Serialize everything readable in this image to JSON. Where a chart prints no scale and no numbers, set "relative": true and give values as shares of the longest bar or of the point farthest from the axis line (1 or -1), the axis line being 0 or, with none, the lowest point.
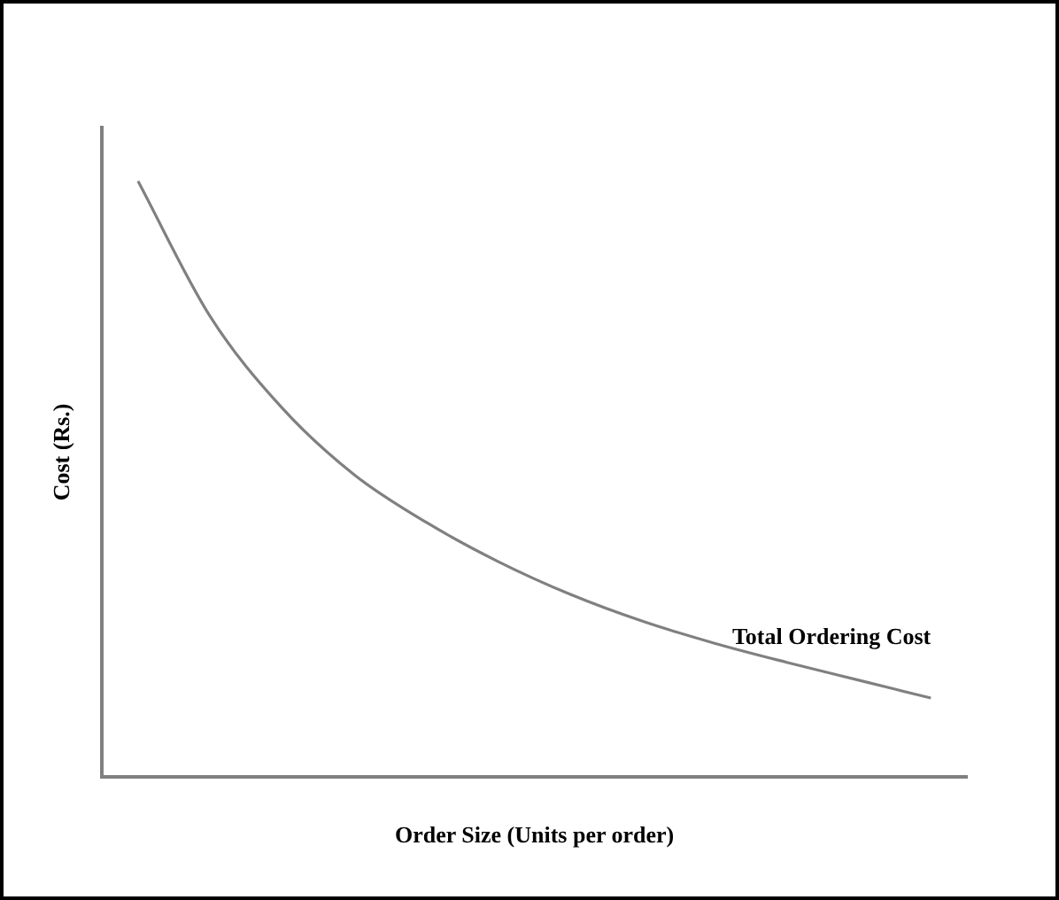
{
  "chart_data": {
    "type": "line",
    "relative": true,
    "xlabel": "Order Size (Units per order)",
    "ylabel": "Cost (Rs.)",
    "categories": [
      null,
      null,
      null,
      null,
      null,
      null,
      null,
      null,
      null,
      null,
      null,
      null
    ],
    "series": [
      {
        "name": "Total Ordering Cost",
        "color": "#808080",
        "values": [
          1,
          0.773,
          0.619,
          0.507,
          0.427,
          0.361,
          0.306,
          0.261,
          0.224,
          0.192,
          0.162,
          0.132
        ]
      }
    ],
    "grid": false,
    "legend": false,
    "marker": "none",
    "line_style": "solid"
  }
}
